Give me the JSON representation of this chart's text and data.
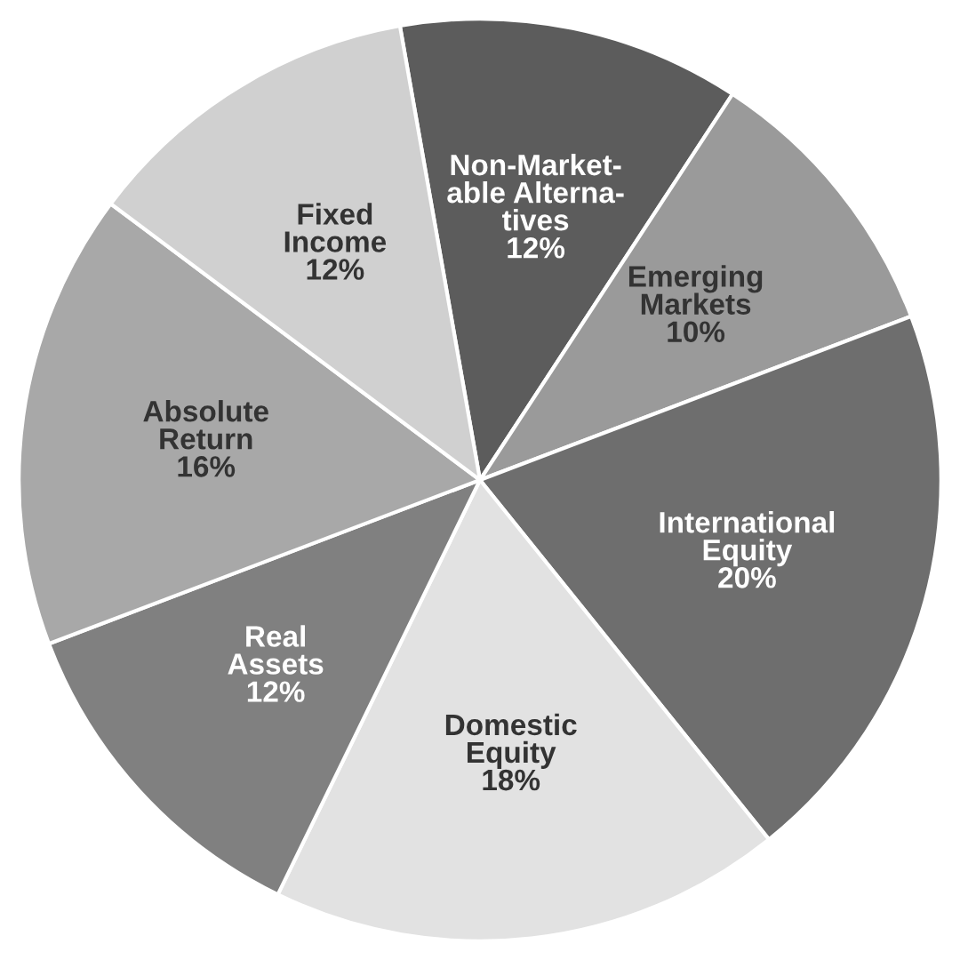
{
  "chart_data": {
    "type": "pie",
    "categories": [
      "Non-Market-\nable Alterna-\ntives",
      "Emerging\nMarkets",
      "International\nEquity",
      "Domestic\nEquity",
      "Real\nAssets",
      "Absolute\nReturn",
      "Fixed\nIncome"
    ],
    "values": [
      12,
      10,
      20,
      18,
      12,
      16,
      12
    ],
    "value_labels": [
      "12%",
      "10%",
      "20%",
      "18%",
      "12%",
      "16%",
      "12%"
    ],
    "colors": [
      "#5c5c5c",
      "#9a9a9a",
      "#6e6e6e",
      "#e2e2e2",
      "#808080",
      "#a8a8a8",
      "#d0d0d0"
    ],
    "legend": false
  }
}
